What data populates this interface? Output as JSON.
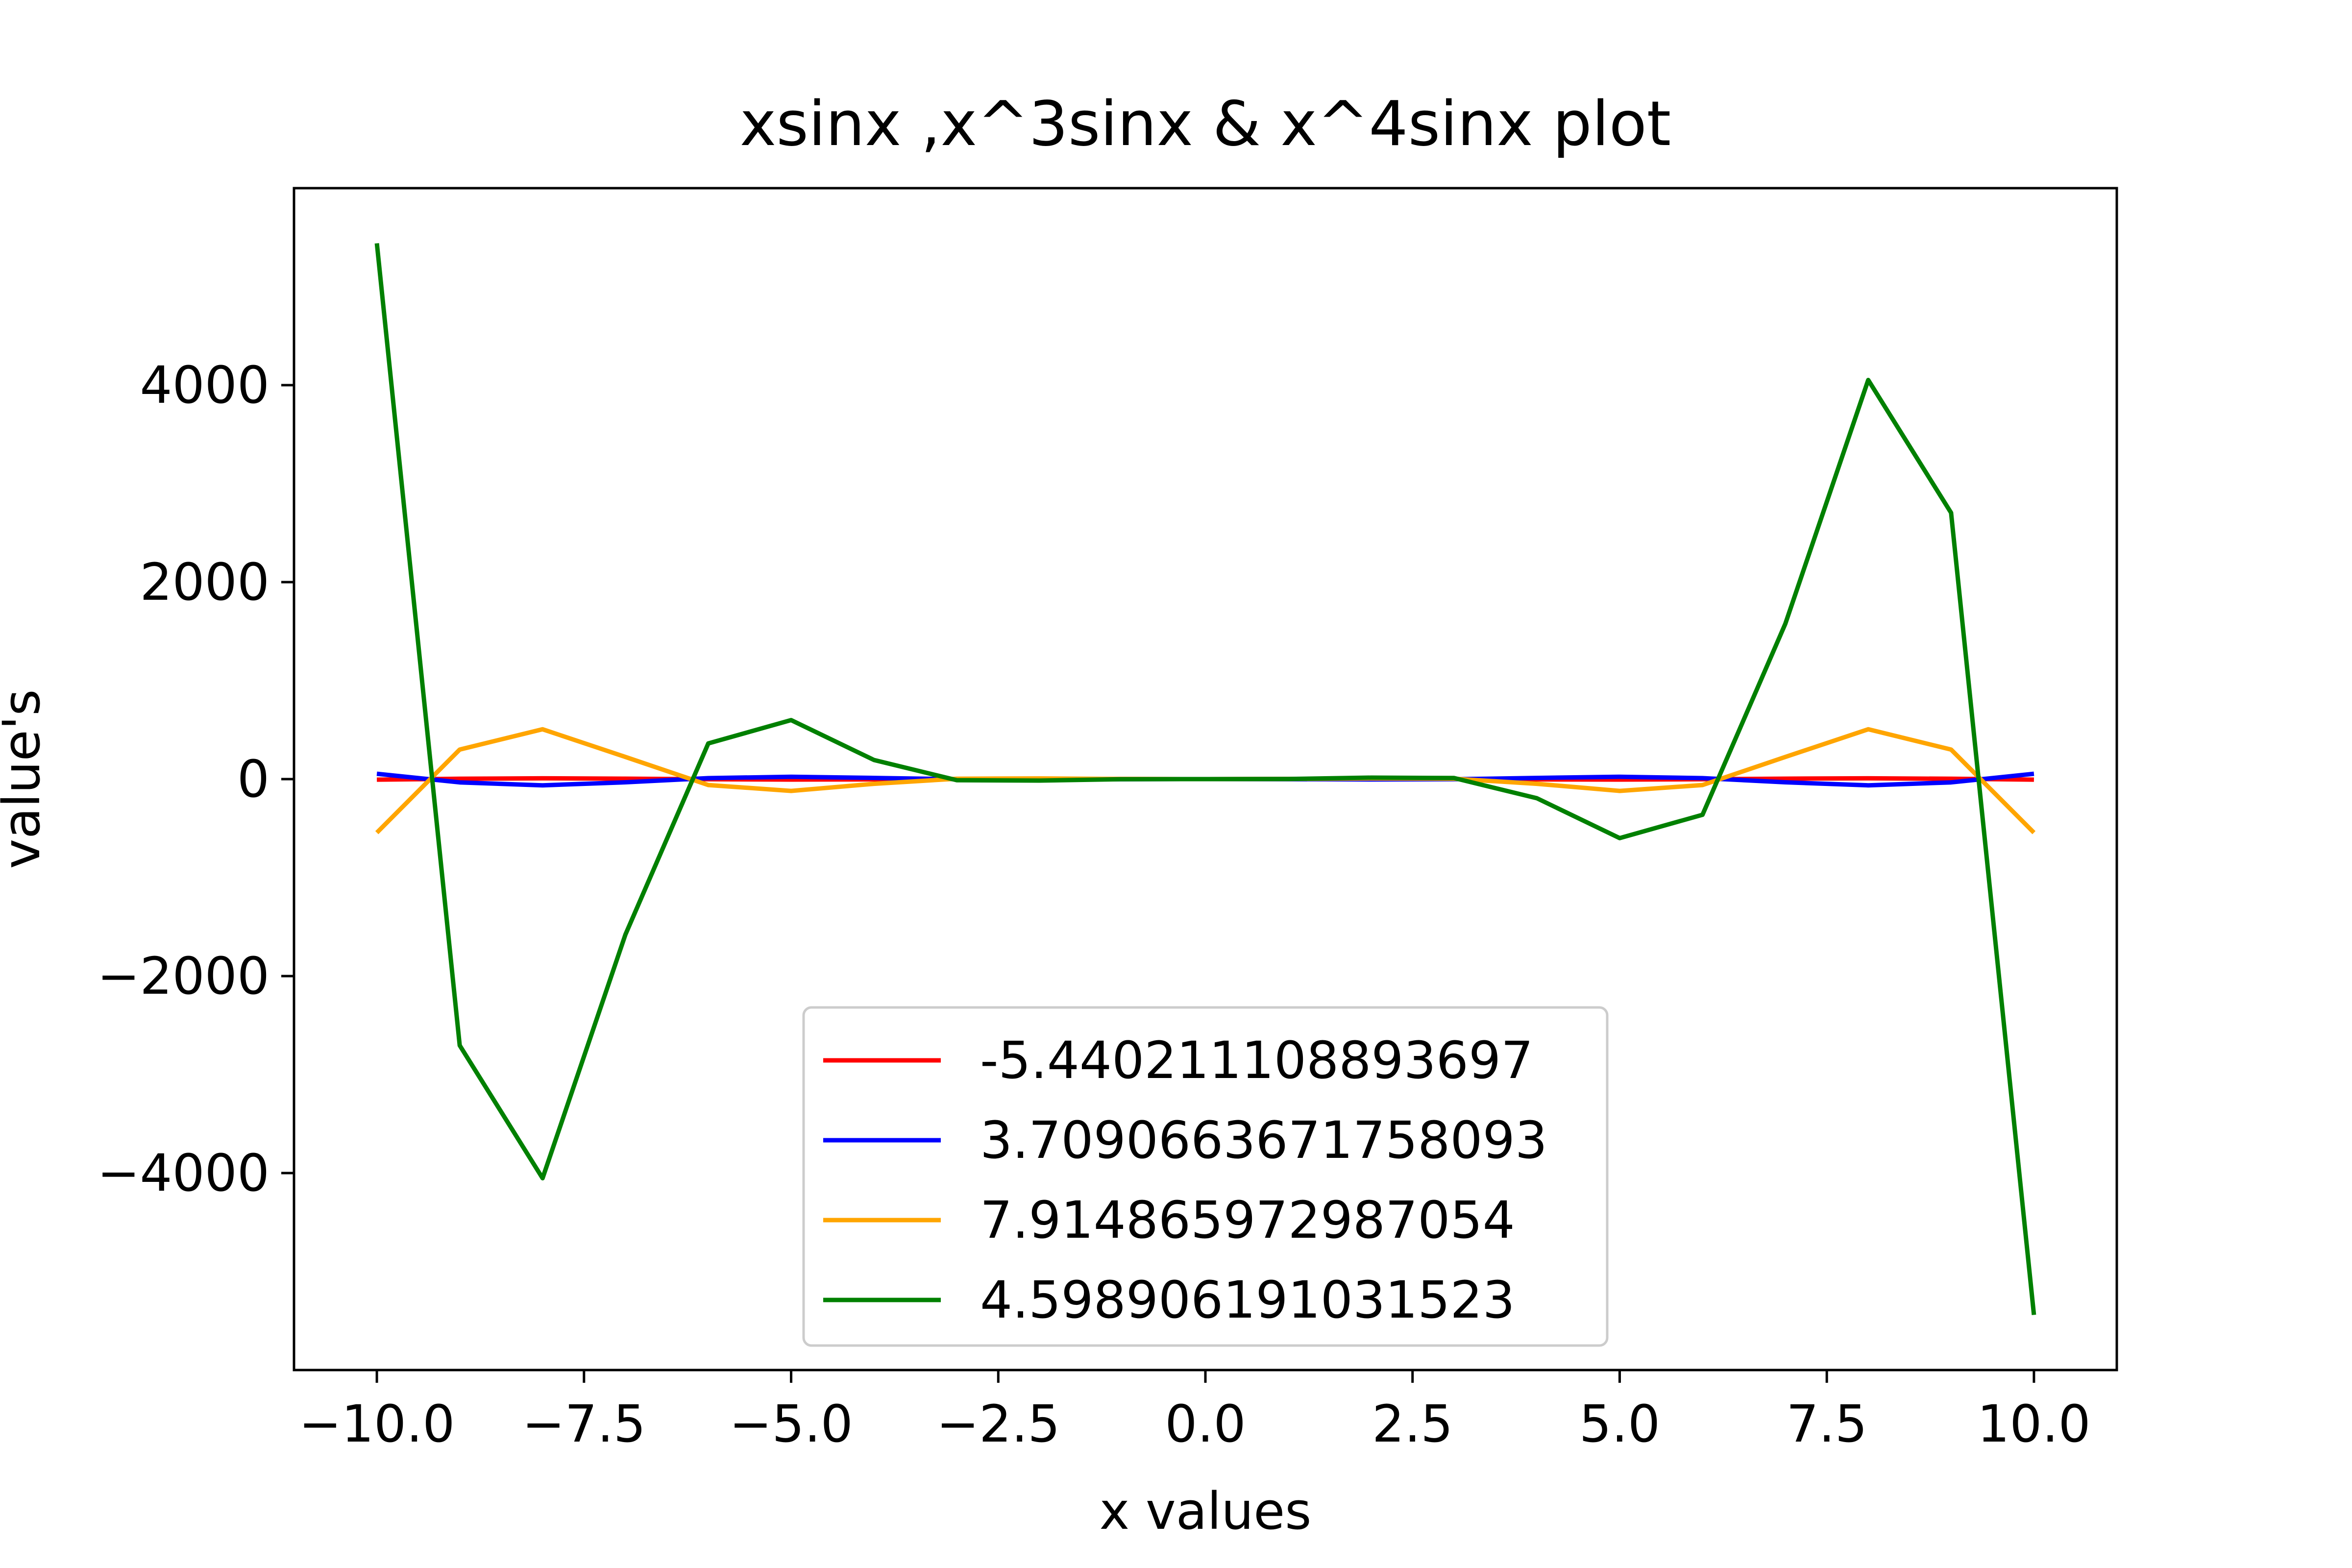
{
  "chart_data": {
    "type": "line",
    "title": "xsinx ,x^3sinx & x^4sinx plot",
    "xlabel": "x values",
    "ylabel": "value's",
    "xlim": [
      -11,
      11
    ],
    "ylim": [
      -6000,
      6000
    ],
    "xticks": [
      -10.0,
      -7.5,
      -5.0,
      -2.5,
      0.0,
      2.5,
      5.0,
      7.5,
      10.0
    ],
    "xtick_labels": [
      "−10.0",
      "−7.5",
      "−5.0",
      "−2.5",
      "0.0",
      "2.5",
      "5.0",
      "7.5",
      "10.0"
    ],
    "yticks": [
      -4000,
      -2000,
      0,
      2000,
      4000
    ],
    "ytick_labels": [
      "−4000",
      "−2000",
      "0",
      "2000",
      "4000"
    ],
    "grid": false,
    "legend_position": "lower-center",
    "x": [
      -10,
      -9,
      -8,
      -7,
      -6,
      -5,
      -4,
      -3,
      -2,
      -1,
      0,
      1,
      2,
      3,
      4,
      5,
      6,
      7,
      8,
      9,
      10
    ],
    "series": [
      {
        "name": "-5.440211108893697",
        "color": "#ff0000",
        "values": [
          -5.4,
          3.7,
          7.9,
          4.6,
          -1.7,
          -4.8,
          -3.0,
          0.4,
          1.8,
          0.8,
          0,
          0.8,
          1.8,
          0.4,
          -3.0,
          -4.8,
          -1.7,
          4.6,
          7.9,
          3.7,
          -5.4
        ]
      },
      {
        "name": "3.7090663671758093",
        "color": "#0000ff",
        "values": [
          54.4,
          -33.4,
          -63.3,
          -32.2,
          10.1,
          24.0,
          12.1,
          -1.3,
          -3.6,
          -0.8,
          0,
          -0.8,
          -3.6,
          -1.3,
          12.1,
          24.0,
          10.1,
          -32.2,
          -63.3,
          -33.4,
          54.4
        ]
      },
      {
        "name": "7.914865972987054",
        "color": "#ffa500",
        "values": [
          -544,
          300,
          506,
          225,
          -60,
          -120,
          -48,
          4,
          7,
          0.8,
          0,
          0.8,
          7,
          4,
          -48,
          -120,
          -60,
          225,
          506,
          300,
          -544
        ]
      },
      {
        "name": "4.598906191031523",
        "color": "#008000",
        "values": [
          5440,
          -2704,
          -4052,
          -1578,
          362,
          599,
          194,
          -11,
          -15,
          -0.8,
          0,
          0.8,
          15,
          11,
          -194,
          -599,
          -362,
          1578,
          4052,
          2704,
          -5440
        ]
      }
    ]
  }
}
